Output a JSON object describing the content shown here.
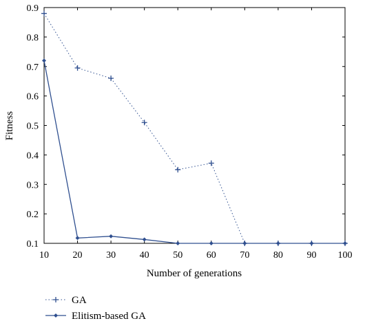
{
  "chart_data": {
    "type": "line",
    "xlabel": "Number of generations",
    "ylabel": "Fitness",
    "xlim": [
      10,
      100
    ],
    "ylim": [
      0.1,
      0.9
    ],
    "x": [
      10,
      20,
      30,
      40,
      50,
      60,
      70,
      80,
      90,
      100
    ],
    "xticks": [
      "10",
      "20",
      "30",
      "40",
      "50",
      "60",
      "70",
      "80",
      "90",
      "100"
    ],
    "yticks": [
      "0.1",
      "0.2",
      "0.3",
      "0.4",
      "0.5",
      "0.6",
      "0.7",
      "0.8",
      "0.9"
    ],
    "grid": false,
    "legend_position": "below plot, left",
    "series": [
      {
        "name": "GA",
        "style": "dotted",
        "marker": "plus",
        "color": "#2f4f8f",
        "values": [
          0.88,
          0.695,
          0.66,
          0.51,
          0.35,
          0.372,
          0.1,
          0.1,
          0.1,
          0.1
        ]
      },
      {
        "name": "Elitism-based GA",
        "style": "solid",
        "marker": "diamond",
        "color": "#2f4f8f",
        "values": [
          0.72,
          0.118,
          0.124,
          0.113,
          0.1,
          0.1,
          0.1,
          0.1,
          0.1,
          0.1
        ]
      }
    ]
  }
}
